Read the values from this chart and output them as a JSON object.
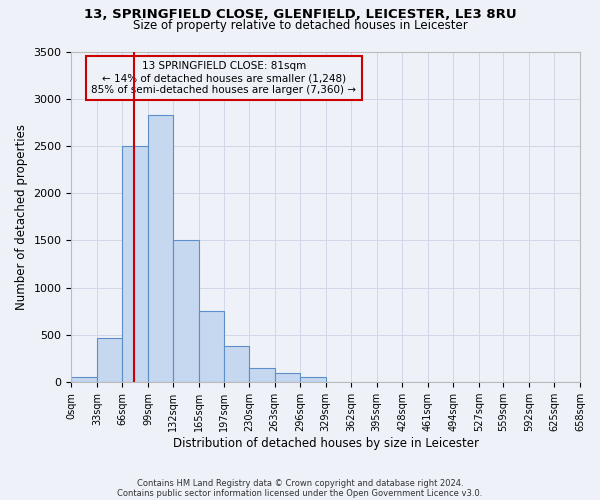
{
  "title_line1": "13, SPRINGFIELD CLOSE, GLENFIELD, LEICESTER, LE3 8RU",
  "title_line2": "Size of property relative to detached houses in Leicester",
  "xlabel": "Distribution of detached houses by size in Leicester",
  "ylabel": "Number of detached properties",
  "footnote1": "Contains HM Land Registry data © Crown copyright and database right 2024.",
  "footnote2": "Contains public sector information licensed under the Open Government Licence v3.0.",
  "annotation_line1": "13 SPRINGFIELD CLOSE: 81sqm",
  "annotation_line2": "← 14% of detached houses are smaller (1,248)",
  "annotation_line3": "85% of semi-detached houses are larger (7,360) →",
  "property_size": 81,
  "bin_edges": [
    0,
    33,
    66,
    99,
    132,
    165,
    197,
    230,
    263,
    296,
    329,
    362,
    395,
    428,
    461,
    494,
    527,
    559,
    592,
    625,
    658
  ],
  "bar_heights": [
    50,
    470,
    2500,
    2830,
    1500,
    750,
    380,
    150,
    100,
    50,
    0,
    0,
    0,
    0,
    0,
    0,
    0,
    0,
    0,
    0
  ],
  "bar_color": "#c5d8f0",
  "bar_edge_color": "#5b8fc9",
  "red_line_color": "#cc0000",
  "annotation_box_color": "#cc0000",
  "grid_color": "#d0d8e8",
  "background_color": "#eef2f8",
  "ylim": [
    0,
    3500
  ],
  "yticks": [
    0,
    500,
    1000,
    1500,
    2000,
    2500,
    3000,
    3500
  ]
}
